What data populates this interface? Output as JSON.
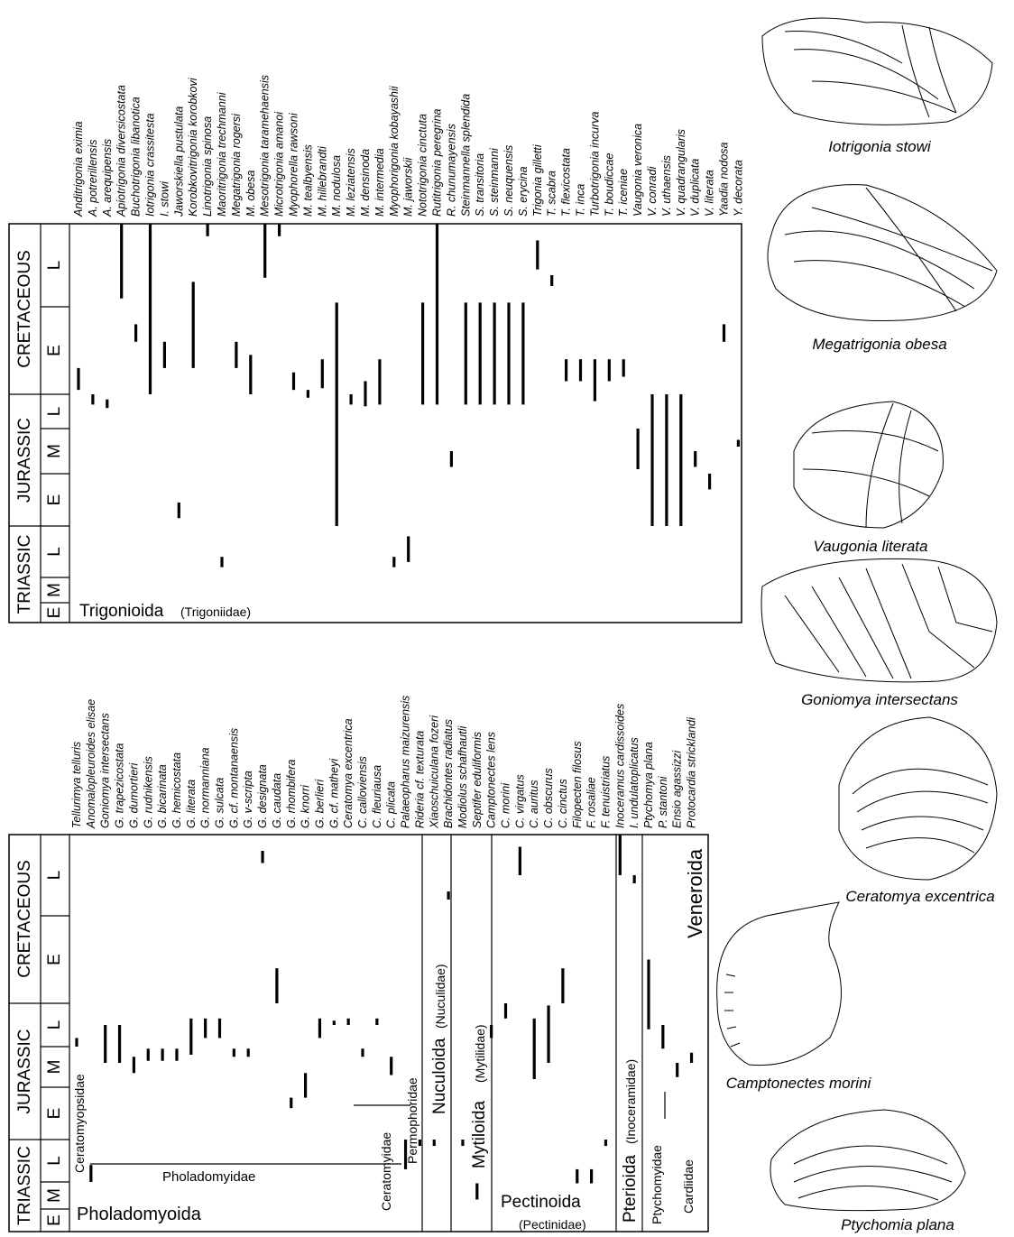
{
  "panels": [
    {
      "group": "Trigonioida",
      "family": "(Trigoniidae)",
      "periods": [
        {
          "name": "TRIASSIC",
          "epochs": [
            "E",
            "M",
            "L"
          ]
        },
        {
          "name": "JURASSIC",
          "epochs": [
            "E",
            "M",
            "L"
          ]
        },
        {
          "name": "CRETACEOUS",
          "epochs": [
            "E",
            "L"
          ]
        }
      ],
      "taxa": [
        {
          "name": "Anditrigonia eximia",
          "range": [
            6.05,
            6.3
          ]
        },
        {
          "name": "A. potrerillensis",
          "range": [
            5.7,
            6.0
          ]
        },
        {
          "name": "A. arequipensis",
          "range": [
            5.6,
            5.85
          ]
        },
        {
          "name": "Apiotrigonia diversicostata",
          "range": [
            7.1,
            8.0
          ]
        },
        {
          "name": "Buchotrigonia libanotica",
          "range": [
            6.6,
            6.8
          ]
        },
        {
          "name": "Iotrigonia crassitesta",
          "range": [
            6.0,
            8.0
          ]
        },
        {
          "name": "I. stowi",
          "range": [
            6.3,
            6.6
          ]
        },
        {
          "name": "Jaworskiella pustulata",
          "range": [
            3.15,
            3.45
          ]
        },
        {
          "name": "Korobkovitrigonia korobkovi",
          "range": [
            6.3,
            7.3
          ]
        },
        {
          "name": "Linotrigonia spinosa",
          "range": [
            7.85,
            8.0
          ]
        },
        {
          "name": "Maoritrigonia trechmanni",
          "range": [
            2.2,
            2.4
          ]
        },
        {
          "name": "Megatrigonia rogersi",
          "range": [
            6.3,
            6.6
          ]
        },
        {
          "name": "M. obesa",
          "range": [
            6.0,
            6.45
          ]
        },
        {
          "name": "Mesotrigonia taramehaensis",
          "range": [
            7.35,
            8.0
          ]
        },
        {
          "name": "Microtrigonia amanoi",
          "range": [
            7.85,
            8.0
          ]
        },
        {
          "name": "Myophorella rawsoni",
          "range": [
            6.05,
            6.25
          ]
        },
        {
          "name": "M. tealbyensis",
          "range": [
            5.9,
            6.05
          ]
        },
        {
          "name": "M. hillebrandti",
          "range": [
            6.07,
            6.4
          ]
        },
        {
          "name": "M. nodulosa",
          "range": [
            3.0,
            7.05
          ]
        },
        {
          "name": "M. leziatensis",
          "range": [
            5.7,
            6.0
          ]
        },
        {
          "name": "M. densinoda",
          "range": [
            5.65,
            6.15
          ]
        },
        {
          "name": "M. intermedia",
          "range": [
            5.7,
            6.4
          ]
        },
        {
          "name": "Myophorigonia kobayashii",
          "range": [
            2.2,
            2.4
          ]
        },
        {
          "name": "M. jaworskii",
          "range": [
            2.3,
            2.8
          ]
        },
        {
          "name": "Nototrigonia cinctuta",
          "range": [
            5.7,
            7.05
          ]
        },
        {
          "name": "Rutitrigonia peregrina",
          "range": [
            5.7,
            8.0
          ]
        },
        {
          "name": "R. chunumayensis",
          "range": [
            4.15,
            4.5
          ]
        },
        {
          "name": "Steinmannella splendida",
          "range": [
            5.7,
            7.05
          ]
        },
        {
          "name": "S. transitoria",
          "range": [
            5.7,
            7.05
          ]
        },
        {
          "name": "S. steinmanni",
          "range": [
            5.7,
            7.05
          ]
        },
        {
          "name": "S. neuquensis",
          "range": [
            5.7,
            7.05
          ]
        },
        {
          "name": "S. erycina",
          "range": [
            5.7,
            7.05
          ]
        },
        {
          "name": "Trigonia gilletti",
          "range": [
            7.45,
            7.8
          ]
        },
        {
          "name": "T. scabra",
          "range": [
            7.25,
            7.38
          ]
        },
        {
          "name": "T. flexicostata",
          "range": [
            6.15,
            6.4
          ]
        },
        {
          "name": "T. inca",
          "range": [
            6.15,
            6.4
          ]
        },
        {
          "name": "Turbotrigonia incurva",
          "range": [
            5.8,
            6.4
          ]
        },
        {
          "name": "T. boudiccae",
          "range": [
            6.15,
            6.4
          ]
        },
        {
          "name": "T. iceniae",
          "range": [
            6.2,
            6.4
          ]
        },
        {
          "name": "Vaugonia veronica",
          "range": [
            4.1,
            5.0
          ]
        },
        {
          "name": "V. conradi",
          "range": [
            3.0,
            6.0
          ]
        },
        {
          "name": "V. uthaensis",
          "range": [
            3.0,
            6.0
          ]
        },
        {
          "name": "V. quadrangularis",
          "range": [
            3.0,
            6.0
          ]
        },
        {
          "name": "V. duplicata",
          "range": [
            4.15,
            4.5
          ]
        },
        {
          "name": "V. literata",
          "range": [
            3.7,
            4.0
          ]
        },
        {
          "name": "Yaadia nodosa",
          "range": [
            6.6,
            6.8
          ]
        },
        {
          "name": "Y. decorata",
          "range": [
            4.6,
            4.75
          ]
        }
      ]
    },
    {
      "groups": [
        "Pholadomyoida",
        "Pholadomyidae",
        "Ceratomyopsidae",
        "Ceratomyidae",
        "Permophoridae",
        "Nuculoida",
        "(Nuculidae)",
        "Mytiloida",
        "(Mytilidae)",
        "Pectinoida",
        "(Pectinidae)",
        "Pterioida",
        "(Inoceramidae)",
        "Veneroida",
        "Ptychomyidae",
        "Cardiidae"
      ],
      "periods": [
        {
          "name": "TRIASSIC",
          "epochs": [
            "E",
            "M",
            "L"
          ]
        },
        {
          "name": "JURASSIC",
          "epochs": [
            "E",
            "M",
            "L"
          ]
        },
        {
          "name": "CRETACEOUS",
          "epochs": [
            "E",
            "L"
          ]
        }
      ],
      "taxa": [
        {
          "name": "Tellurimya telluris",
          "range": [
            5.0,
            5.2
          ]
        },
        {
          "name": "Anomalopleuroides elisae",
          "range": [
            2.0,
            2.4
          ]
        },
        {
          "name": "Goniomya intersectans",
          "range": [
            4.6,
            5.5
          ]
        },
        {
          "name": "G. trapezicostata",
          "range": [
            4.6,
            5.5
          ]
        },
        {
          "name": "G. dumortieri",
          "range": [
            4.35,
            4.75
          ]
        },
        {
          "name": "G. rudnikensis",
          "range": [
            4.65,
            4.95
          ]
        },
        {
          "name": "G. bicarinata",
          "range": [
            4.65,
            4.95
          ]
        },
        {
          "name": "G. hemicostata",
          "range": [
            4.65,
            4.95
          ]
        },
        {
          "name": "G. literata",
          "range": [
            4.8,
            5.65
          ]
        },
        {
          "name": "G. normanniana",
          "range": [
            5.2,
            5.65
          ]
        },
        {
          "name": "G. sulcata",
          "range": [
            5.2,
            5.65
          ]
        },
        {
          "name": "G. cf. montanaensis",
          "range": [
            4.75,
            4.95
          ]
        },
        {
          "name": "G. v-scripta",
          "range": [
            4.75,
            4.95
          ]
        },
        {
          "name": "G. designata",
          "range": [
            7.65,
            7.8
          ]
        },
        {
          "name": "G. caudata",
          "range": [
            6.0,
            6.4
          ]
        },
        {
          "name": "G. rhombifera",
          "range": [
            3.6,
            3.8
          ]
        },
        {
          "name": "G. knorri",
          "range": [
            3.8,
            4.35
          ]
        },
        {
          "name": "G. berlieri",
          "range": [
            5.2,
            5.65
          ]
        },
        {
          "name": "G. cf. matheyi",
          "range": [
            5.5,
            5.6
          ]
        },
        {
          "name": "Ceratomya excentrica",
          "range": [
            5.5,
            5.65
          ]
        },
        {
          "name": "C. calloviensis",
          "range": [
            4.75,
            4.95
          ]
        },
        {
          "name": "C. fleuriausa",
          "range": [
            5.5,
            5.65
          ]
        },
        {
          "name": "C. plicata",
          "range": [
            4.3,
            4.75
          ]
        },
        {
          "name": "Palaeopharus maizurensis",
          "range": [
            2.3,
            3.0
          ]
        },
        {
          "name": "Rideria cf. texturata",
          "range": [
            2.85,
            3.0
          ]
        },
        {
          "name": "Xiaoschuiculana fozeri",
          "range": [
            2.85,
            3.0
          ]
        },
        {
          "name": "Brachidontes radiatus",
          "range": [
            7.2,
            7.3
          ]
        },
        {
          "name": "Modiolus schafhautli",
          "range": [
            2.85,
            3.0
          ]
        },
        {
          "name": "Septifer eduliformis",
          "range": [
            1.35,
            1.95
          ]
        },
        {
          "name": "Camptonectes lens",
          "range": [
            5.2,
            5.5
          ]
        },
        {
          "name": "C. morini",
          "range": [
            5.65,
            6.0
          ]
        },
        {
          "name": "C. virgatus",
          "range": [
            7.5,
            7.85
          ]
        },
        {
          "name": "C. auritus",
          "range": [
            4.2,
            5.65
          ]
        },
        {
          "name": "C. obscurus",
          "range": [
            4.6,
            5.95
          ]
        },
        {
          "name": "C. cinctus",
          "range": [
            6.0,
            6.4
          ]
        },
        {
          "name": "Filopecten filosus",
          "range": [
            1.95,
            2.3
          ]
        },
        {
          "name": "F. rosaliae",
          "range": [
            1.95,
            2.3
          ]
        },
        {
          "name": "F. tenuistriatus",
          "range": [
            2.85,
            3.0
          ]
        },
        {
          "name": "Inoceramus cardissoides",
          "range": [
            7.5,
            8.0
          ]
        },
        {
          "name": "I. undulatoplicatus",
          "range": [
            7.4,
            7.5
          ]
        },
        {
          "name": "Ptychomya plana",
          "range": [
            5.4,
            6.5
          ]
        },
        {
          "name": "P. stantoni",
          "range": [
            4.95,
            5.5
          ]
        },
        {
          "name": "Ensio agassizzi",
          "range": [
            4.25,
            4.6
          ]
        },
        {
          "name": "Protocardia stricklandi",
          "range": [
            4.6,
            4.85
          ]
        }
      ]
    }
  ],
  "figures": [
    {
      "caption": "Iotrigonia stowi"
    },
    {
      "caption": "Megatrigonia obesa"
    },
    {
      "caption": "Vaugonia literata"
    },
    {
      "caption": "Goniomya intersectans"
    },
    {
      "caption": "Ceratomya excentrica"
    },
    {
      "caption": "Camptonectes morini"
    },
    {
      "caption": "Ptychomia plana"
    }
  ]
}
